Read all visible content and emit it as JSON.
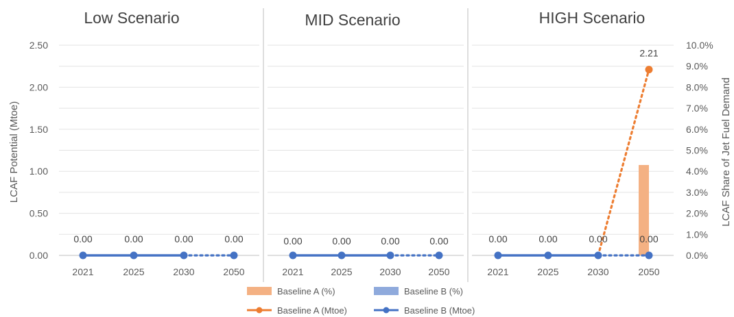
{
  "chart_data": {
    "type": "bar+line",
    "panels": [
      {
        "title": "Low Scenario"
      },
      {
        "title": "MID Scenario"
      },
      {
        "title": "HIGH Scenario"
      }
    ],
    "categories": [
      "2021",
      "2025",
      "2030",
      "2050"
    ],
    "ylabel": "LCAF Potential (Mtoe)",
    "y2label": "LCAF Share of Jet Fuel Demand",
    "y_ticks": [
      "0.00",
      "0.50",
      "1.00",
      "1.50",
      "2.00",
      "2.50"
    ],
    "y2_ticks": [
      "0.0%",
      "1.0%",
      "2.0%",
      "3.0%",
      "4.0%",
      "5.0%",
      "6.0%",
      "7.0%",
      "8.0%",
      "9.0%",
      "10.0%"
    ],
    "ylim": [
      0,
      2.5
    ],
    "y2lim": [
      0,
      10
    ],
    "series": [
      {
        "name": "Baseline A (%)",
        "kind": "bar",
        "color": "#f4b183",
        "values": [
          [
            0,
            0,
            0,
            0
          ],
          [
            0,
            0,
            0,
            0
          ],
          [
            0,
            0,
            0,
            4.3
          ]
        ]
      },
      {
        "name": "Baseline B (%)",
        "kind": "bar",
        "color": "#8faadc",
        "values": [
          [
            0,
            0,
            0,
            0
          ],
          [
            0,
            0,
            0,
            0
          ],
          [
            0,
            0,
            0,
            0
          ]
        ]
      },
      {
        "name": "Baseline A (Mtoe)",
        "kind": "line",
        "color": "#ed7d31",
        "values": [
          [
            0,
            0,
            0,
            0
          ],
          [
            0,
            0,
            0,
            0
          ],
          [
            0,
            0,
            0,
            2.21
          ]
        ]
      },
      {
        "name": "Baseline B (Mtoe)",
        "kind": "line",
        "color": "#4472c4",
        "values": [
          [
            0,
            0,
            0,
            0
          ],
          [
            0,
            0,
            0,
            0
          ],
          [
            0,
            0,
            0,
            0
          ]
        ]
      }
    ],
    "data_labels": [
      [
        "0.00",
        "0.00",
        "0.00",
        "0.00"
      ],
      [
        "0.00",
        "0.00",
        "0.00",
        "0.00"
      ],
      [
        "0.00",
        "0.00",
        "0.00",
        "0.00"
      ]
    ],
    "highlight_label": "2.21",
    "grid": true,
    "legend_position": "bottom"
  }
}
